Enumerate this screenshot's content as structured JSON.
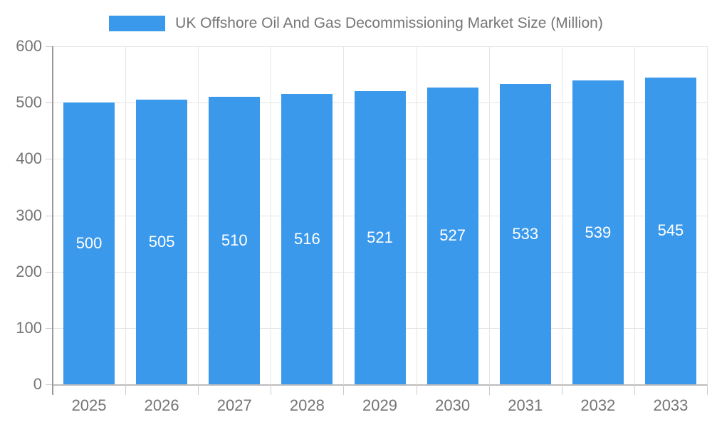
{
  "chart_data": {
    "type": "bar",
    "title": "UK Offshore Oil And Gas Decommissioning Market Size (Million)",
    "categories": [
      "2025",
      "2026",
      "2027",
      "2028",
      "2029",
      "2030",
      "2031",
      "2032",
      "2033"
    ],
    "values": [
      500,
      505,
      510,
      516,
      521,
      527,
      533,
      539,
      545
    ],
    "bar_labels": [
      "500",
      "505",
      "510",
      "516",
      "521",
      "527",
      "533",
      "539",
      "545"
    ],
    "xlabel": "",
    "ylabel": "",
    "ylim": [
      0,
      600
    ],
    "ytick_step": 100,
    "ytick_labels": [
      "0",
      "100",
      "200",
      "300",
      "400",
      "500",
      "600"
    ],
    "grid": true,
    "legend_position": "top-center",
    "colors": {
      "bar": "#3b99ec",
      "bar_label_text": "#ffffff",
      "axis_text": "#757575",
      "gridline": "#e6e6e6",
      "axis_line": "#999999",
      "baseline": "#bdbdbd",
      "tick": "#cccccc",
      "background": "#ffffff"
    }
  }
}
